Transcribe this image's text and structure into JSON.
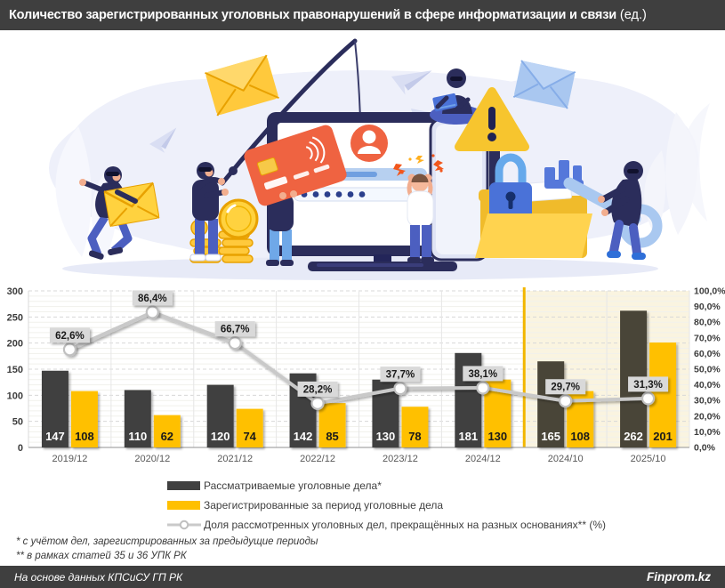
{
  "header": {
    "title_main": "Количество зарегистрированных уголовных правонарушений в сфере информатизации и связи",
    "title_unit": "(ед.)"
  },
  "chart_data": {
    "type": "bar+line",
    "categories": [
      "2019/12",
      "2020/12",
      "2021/12",
      "2022/12",
      "2023/12",
      "2024/12",
      "2024/10",
      "2025/10"
    ],
    "series": [
      {
        "name": "Рассматриваемые уголовные дела*",
        "color": "#404040",
        "highlight_color": "#4A4437",
        "label_color": "#FFFFFF",
        "values": [
          147,
          110,
          120,
          142,
          130,
          181,
          165,
          262
        ]
      },
      {
        "name": "Зарегистрированные за период уголовные дела",
        "color": "#FFC000",
        "highlight_color": "#FFC000",
        "label_color": "#1A1A1A",
        "values": [
          108,
          62,
          74,
          85,
          78,
          130,
          108,
          201
        ]
      }
    ],
    "line_series": {
      "name": "Доля рассмотренных уголовных дел, прекращённых на разных основаниях** (%)",
      "color": "#C9C9C9",
      "marker_fill": "#FFFFFF",
      "marker_stroke": "#C0C0C0",
      "label_bg": "#D9D9D9",
      "values": [
        62.6,
        86.4,
        66.7,
        28.2,
        37.7,
        38.1,
        29.7,
        31.3
      ],
      "labels": [
        "62,6%",
        "86,4%",
        "66,7%",
        "28,2%",
        "37,7%",
        "38,1%",
        "29,7%",
        "31,3%"
      ]
    },
    "left_axis": {
      "min": 0,
      "max": 300,
      "ticks": [
        "0",
        "50",
        "100",
        "150",
        "200",
        "250",
        "300"
      ]
    },
    "right_axis": {
      "min": 0,
      "max": 100,
      "ticks": [
        "0,0%",
        "10,0%",
        "20,0%",
        "30,0%",
        "40,0%",
        "50,0%",
        "60,0%",
        "70,0%",
        "80,0%",
        "90,0%",
        "100,0%"
      ]
    },
    "highlight": {
      "from_index": 6,
      "fill": "#FAF4E0",
      "line_color": "#F2B600"
    },
    "grid": {
      "minor_color": "#F1F1EC",
      "major_color": "#D8D8D8",
      "vertical_color": "#E6E6E6",
      "axis_color": "#A6A6A6"
    },
    "legend_position": "bottom"
  },
  "footnotes": {
    "line1": "* с учётом дел, зарегистрированных за предыдущие периоды",
    "line2": "** в рамках статей 35 и 36 УПК РК"
  },
  "footer": {
    "source": "На основе данных КПСиСУ ГП РК",
    "brand": "Finprom.kz"
  }
}
